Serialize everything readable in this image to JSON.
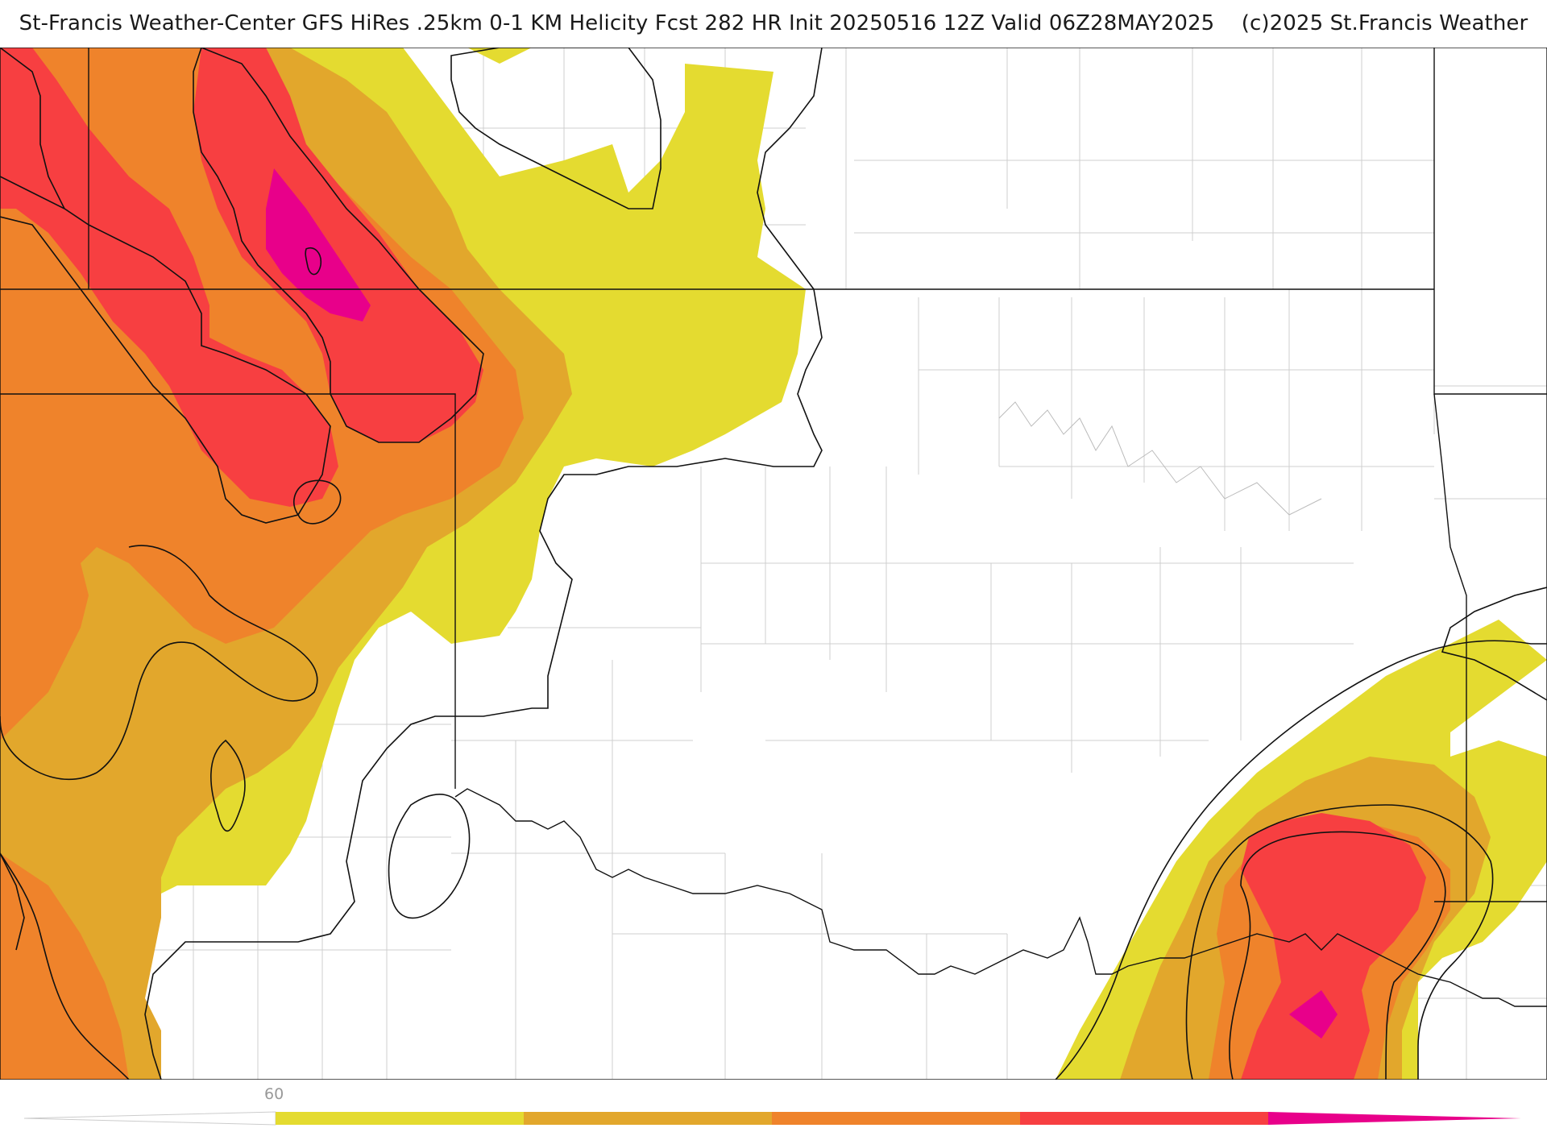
{
  "header": {
    "title_main": "St-Francis Weather-Center GFS HiRes .25km 0-1 KM Helicity Fcst 282 HR Init 20250516 12Z  Valid 06Z28MAY2025",
    "copyright": "(c)2025 St.Francis Weather"
  },
  "legend": {
    "tick_label": "60",
    "colors": [
      "#e4db30",
      "#e2a72c",
      "#ef832b",
      "#f73f41",
      "#e8008a"
    ]
  },
  "map": {
    "variable": "0-1 KM Helicity",
    "fill_colors": {
      "level1": "#e4db30",
      "level2": "#e2a72c",
      "level3": "#ef832b",
      "level4": "#f73f41",
      "level5": "#e8008a"
    },
    "contour_color": "#000000",
    "county_line_color": "#c8c8c8",
    "state_line_color": "#111111"
  }
}
